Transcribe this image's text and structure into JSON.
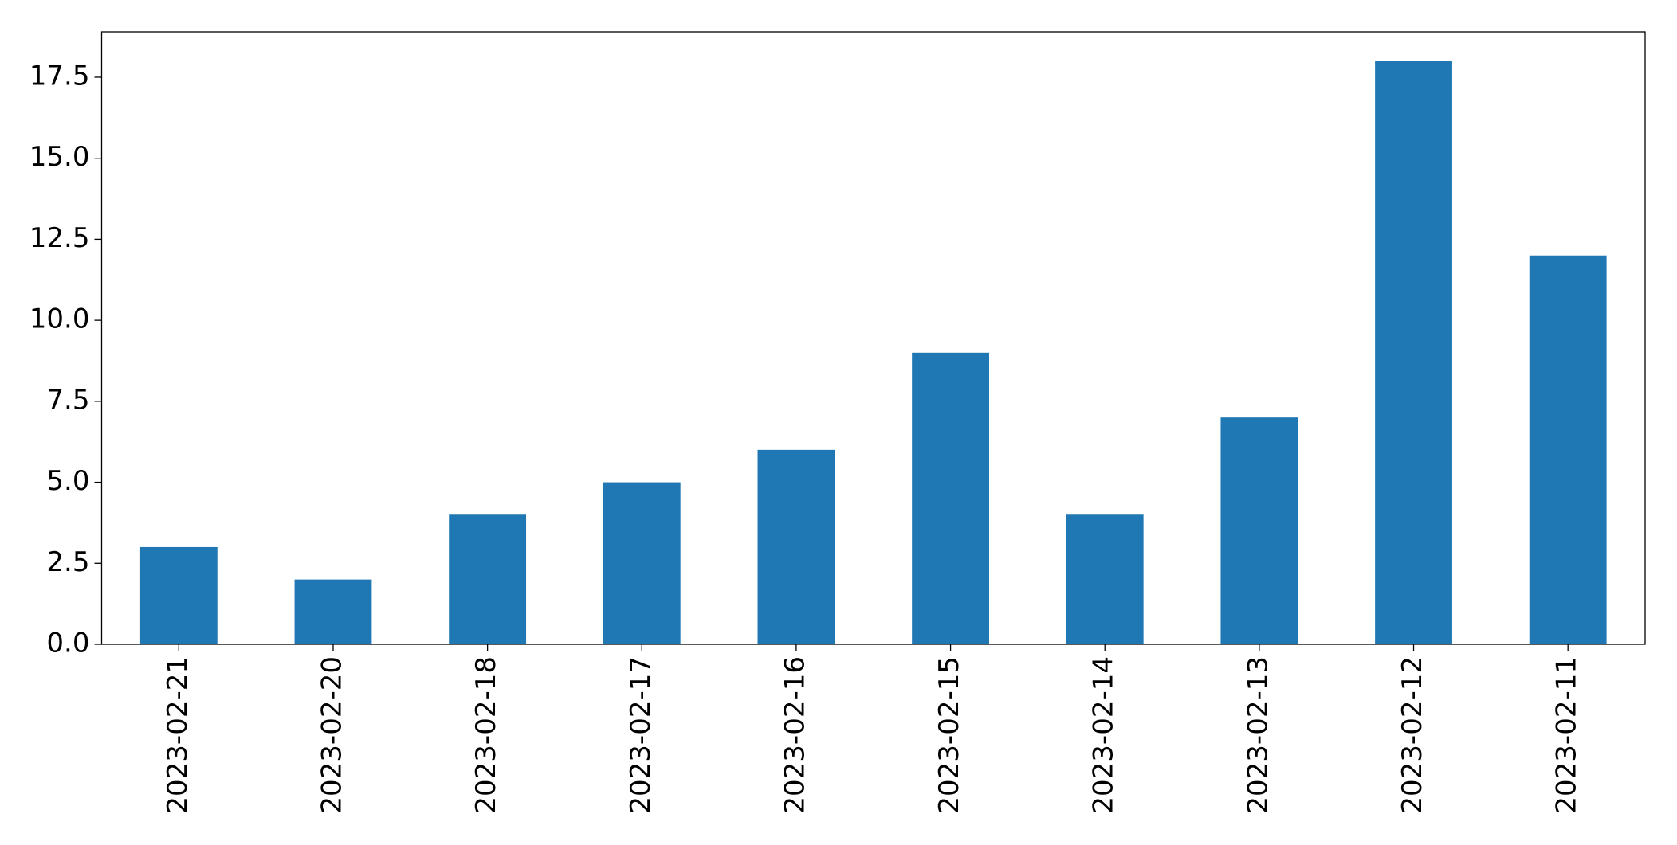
{
  "chart_data": {
    "type": "bar",
    "categories": [
      "2023-02-21",
      "2023-02-20",
      "2023-02-18",
      "2023-02-17",
      "2023-02-16",
      "2023-02-15",
      "2023-02-14",
      "2023-02-13",
      "2023-02-12",
      "2023-02-11"
    ],
    "values": [
      3,
      2,
      4,
      5,
      6,
      9,
      4,
      7,
      18,
      12
    ],
    "color": "#1f77b4",
    "ylim": [
      0,
      18.9
    ],
    "yticks": [
      {
        "value": 0,
        "label": "0.0"
      },
      2.5,
      {
        "value": 5,
        "label": "5.0"
      },
      7.5,
      {
        "value": 10,
        "label": "10.0"
      },
      12.5,
      {
        "value": 15,
        "label": "15.0"
      },
      17.5
    ],
    "grid": false
  }
}
